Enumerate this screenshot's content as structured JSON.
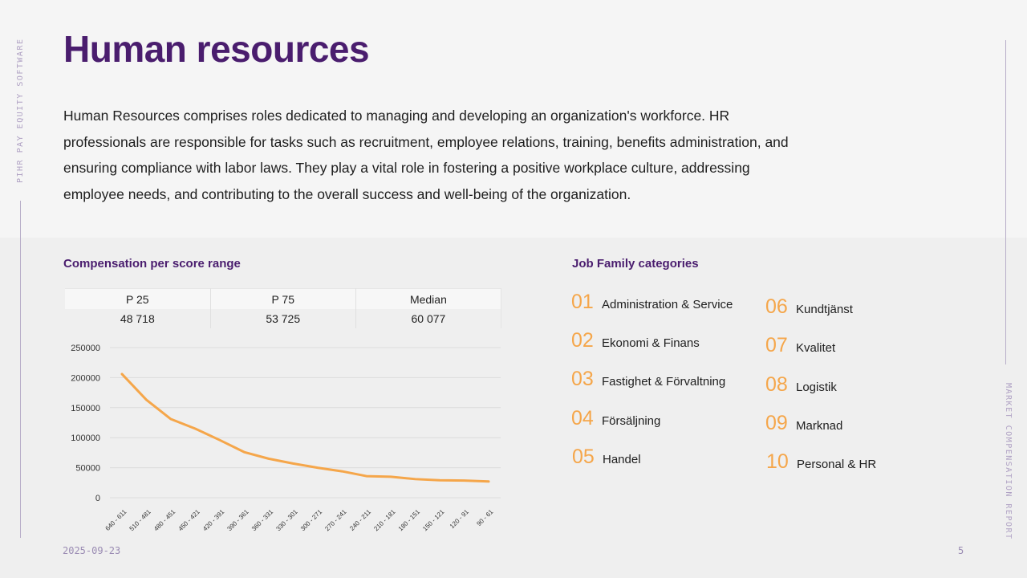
{
  "sidebar": {
    "left_label": "PIHR PAY EQUITY SOFTWARE",
    "right_label": "MARKET COMPENSATION REPORT"
  },
  "header": {
    "title": "Human resources"
  },
  "intro": {
    "text": "Human Resources comprises roles dedicated to managing and developing an organization's workforce. HR professionals are responsible for tasks such as recruitment, employee relations, training, benefits administration, and ensuring compliance with labor laws. They play a vital role in fostering a positive workplace culture, addressing employee needs, and contributing to the overall success and well-being of the organization."
  },
  "compensation": {
    "title": "Compensation per score range",
    "table": {
      "headers": [
        "P 25",
        "P 75",
        "Median"
      ],
      "values": [
        "48 718",
        "53 725",
        "60 077"
      ]
    }
  },
  "chart_data": {
    "type": "line",
    "title": "",
    "xlabel": "",
    "ylabel": "",
    "categories": [
      "640 - 611",
      "510 - 481",
      "480 - 451",
      "450 - 421",
      "420 - 391",
      "390 - 361",
      "360 - 331",
      "330 - 301",
      "300 - 271",
      "270 - 241",
      "240 - 211",
      "210 - 181",
      "180 - 151",
      "150 - 121",
      "120 - 91",
      "90 - 61"
    ],
    "series": [
      {
        "name": "Compensation",
        "values": [
          206000,
          163000,
          131000,
          115000,
          96000,
          76000,
          65000,
          57000,
          50000,
          44000,
          36000,
          35000,
          31000,
          29000,
          28500,
          27000
        ]
      }
    ],
    "ylim": [
      0,
      250000
    ],
    "yticks": [
      0,
      50000,
      100000,
      150000,
      200000,
      250000
    ],
    "grid": true,
    "line_color": "#f5a64a"
  },
  "job_families": {
    "title": "Job Family categories",
    "items": [
      {
        "num": "01",
        "label": "Administration & Service"
      },
      {
        "num": "02",
        "label": "Ekonomi & Finans"
      },
      {
        "num": "03",
        "label": "Fastighet & Förvaltning"
      },
      {
        "num": "04",
        "label": "Försäljning"
      },
      {
        "num": "05",
        "label": "Handel"
      },
      {
        "num": "06",
        "label": "Kundtjänst"
      },
      {
        "num": "07",
        "label": "Kvalitet"
      },
      {
        "num": "08",
        "label": "Logistik"
      },
      {
        "num": "09",
        "label": "Marknad"
      },
      {
        "num": "10",
        "label": "Personal & HR"
      }
    ]
  },
  "footer": {
    "date": "2025-09-23",
    "page": "5"
  }
}
